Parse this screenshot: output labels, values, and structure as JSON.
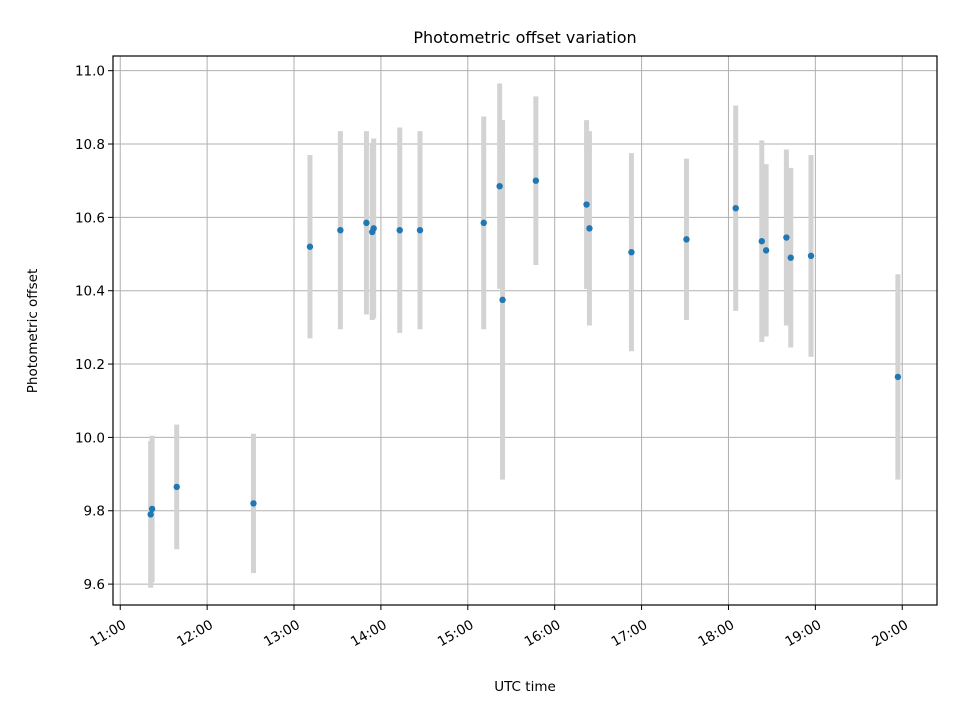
{
  "chart_data": {
    "type": "scatter",
    "title": "Photometric offset variation",
    "xlabel": "UTC time",
    "ylabel": "Photometric offset",
    "x_ticks": [
      "11:00",
      "12:00",
      "13:00",
      "14:00",
      "15:00",
      "16:00",
      "17:00",
      "18:00",
      "19:00",
      "20:00"
    ],
    "y_ticks": [
      "9.6",
      "9.8",
      "10.0",
      "10.2",
      "10.4",
      "10.6",
      "10.8",
      "11.0"
    ],
    "xlim": [
      "10:55",
      "20:24"
    ],
    "ylim": [
      9.543,
      11.04
    ],
    "grid": true,
    "marker_color": "#1f77b4",
    "errorbar_color": "#d3d3d3",
    "points": [
      {
        "x": "11:21",
        "y": 9.79,
        "err": 0.2
      },
      {
        "x": "11:22",
        "y": 9.805,
        "err": 0.2
      },
      {
        "x": "11:39",
        "y": 9.865,
        "err": 0.17
      },
      {
        "x": "12:32",
        "y": 9.82,
        "err": 0.19
      },
      {
        "x": "13:11",
        "y": 10.52,
        "err": 0.25
      },
      {
        "x": "13:32",
        "y": 10.565,
        "err": 0.27
      },
      {
        "x": "13:50",
        "y": 10.585,
        "err": 0.25
      },
      {
        "x": "13:54",
        "y": 10.56,
        "err": 0.24
      },
      {
        "x": "13:55",
        "y": 10.57,
        "err": 0.245
      },
      {
        "x": "14:13",
        "y": 10.565,
        "err": 0.28
      },
      {
        "x": "14:27",
        "y": 10.565,
        "err": 0.27
      },
      {
        "x": "15:11",
        "y": 10.585,
        "err": 0.29
      },
      {
        "x": "15:22",
        "y": 10.685,
        "err": 0.28
      },
      {
        "x": "15:24",
        "y": 10.375,
        "err": 0.49
      },
      {
        "x": "15:47",
        "y": 10.7,
        "err": 0.23
      },
      {
        "x": "16:22",
        "y": 10.635,
        "err": 0.23
      },
      {
        "x": "16:24",
        "y": 10.57,
        "err": 0.265
      },
      {
        "x": "16:53",
        "y": 10.505,
        "err": 0.27
      },
      {
        "x": "17:31",
        "y": 10.54,
        "err": 0.22
      },
      {
        "x": "18:05",
        "y": 10.625,
        "err": 0.28
      },
      {
        "x": "18:23",
        "y": 10.535,
        "err": 0.275
      },
      {
        "x": "18:26",
        "y": 10.51,
        "err": 0.235
      },
      {
        "x": "18:40",
        "y": 10.545,
        "err": 0.24
      },
      {
        "x": "18:43",
        "y": 10.49,
        "err": 0.245
      },
      {
        "x": "18:57",
        "y": 10.495,
        "err": 0.275
      },
      {
        "x": "19:57",
        "y": 10.165,
        "err": 0.28
      }
    ]
  }
}
